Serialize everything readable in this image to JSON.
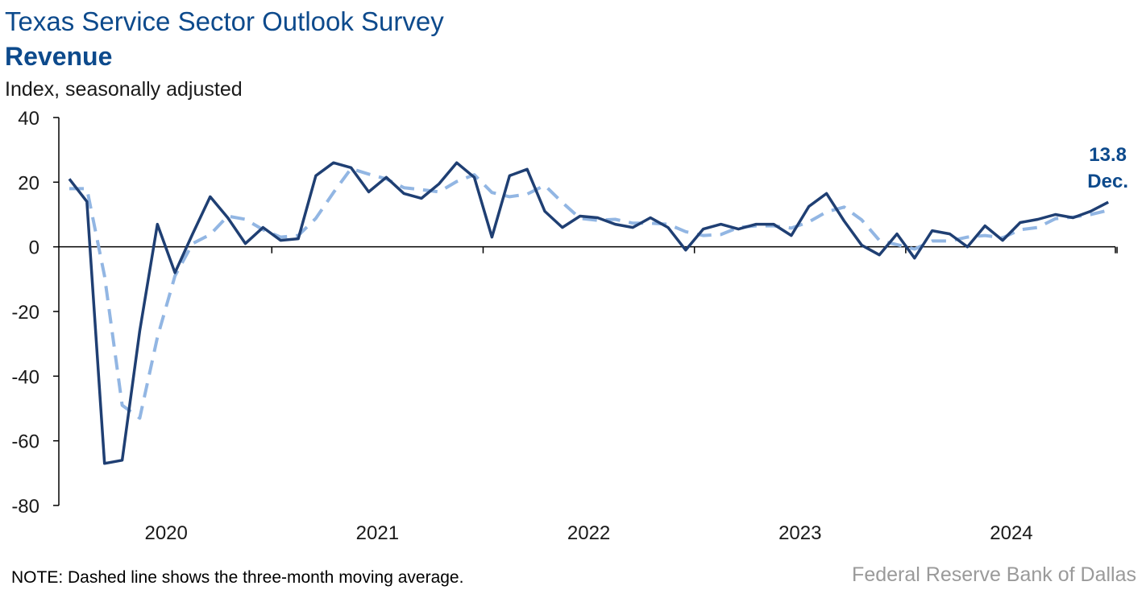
{
  "header": {
    "title": "Texas Service Sector Outlook Survey",
    "subtitle": "Revenue",
    "unit": "Index, seasonally adjusted"
  },
  "footer": {
    "note": "NOTE: Dashed line shows the three-month moving average.",
    "source": "Federal Reserve Bank of Dallas"
  },
  "annotation": {
    "value": "13.8",
    "month": "Dec."
  },
  "colors": {
    "series": "#1f3f73",
    "average": "#92b6e3",
    "title": "#0d4a8c"
  },
  "chart_data": {
    "type": "line",
    "x_start": "2020-01",
    "ylim": [
      -80,
      40
    ],
    "yticks": [
      40,
      20,
      0,
      -20,
      -40,
      -60,
      -80
    ],
    "xtick_labels": [
      "2020",
      "2021",
      "2022",
      "2023",
      "2024"
    ],
    "grid": false,
    "series": [
      {
        "style": "solid",
        "values": [
          21,
          14,
          -67,
          -66,
          -26,
          7,
          -8,
          4,
          15.5,
          9,
          1,
          6,
          2,
          2.5,
          22,
          26,
          24.5,
          17,
          21.5,
          16.5,
          15,
          19.5,
          26,
          21.5,
          3,
          22,
          24,
          11,
          6,
          9.5,
          9,
          7,
          6,
          9,
          6,
          -1,
          5.5,
          7,
          5.5,
          7,
          7,
          3.5,
          12.5,
          16.5,
          8,
          0.5,
          -2.5,
          4,
          -3.5,
          5,
          4,
          0,
          6.5,
          2,
          7.5,
          8.5,
          10,
          9,
          11,
          13.8
        ]
      },
      {
        "style": "dashed",
        "values": [
          18,
          18,
          -9,
          -49,
          -53,
          -28,
          -9,
          1,
          3.8,
          9.5,
          8.5,
          5.3,
          3,
          3.5,
          8.8,
          16.8,
          24.2,
          22.5,
          21,
          18.3,
          17.7,
          17,
          20.2,
          22.3,
          16.8,
          15.5,
          16.3,
          19,
          13.7,
          8.8,
          8.2,
          8.5,
          7.3,
          7.3,
          7,
          4.7,
          3.5,
          3.8,
          6,
          6.5,
          6.5,
          5.8,
          7.7,
          10.8,
          12.3,
          8.3,
          2,
          0.7,
          -0.7,
          1.8,
          1.8,
          3,
          3.5,
          2.8,
          5.3,
          6,
          8.7,
          9.2,
          10,
          11.3
        ]
      }
    ]
  }
}
